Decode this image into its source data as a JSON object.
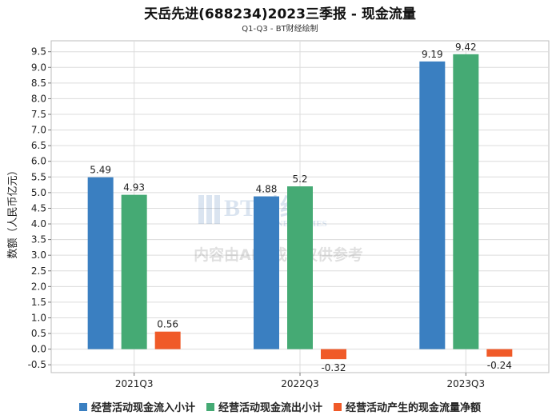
{
  "chart_data": {
    "type": "bar",
    "title": "天岳先进(688234)2023三季报 - 现金流量",
    "subtitle": "Q1-Q3 - BT财经绘制",
    "ylabel": "数额（人民币亿元）",
    "xlabel": "",
    "categories": [
      "2021Q3",
      "2022Q3",
      "2023Q3"
    ],
    "ylim": [
      -0.75,
      9.85
    ],
    "yticks": [
      -0.5,
      0.0,
      0.5,
      1.0,
      1.5,
      2.0,
      2.5,
      3.0,
      3.5,
      4.0,
      4.5,
      5.0,
      5.5,
      6.0,
      6.5,
      7.0,
      7.5,
      8.0,
      8.5,
      9.0,
      9.5
    ],
    "grid": true,
    "legend_position": "bottom",
    "series": [
      {
        "name": "经营活动现金流入小计",
        "color": "#3a7fc1",
        "values": [
          5.49,
          4.88,
          9.19
        ]
      },
      {
        "name": "经营活动现金流出小计",
        "color": "#45aa74",
        "values": [
          4.93,
          5.2,
          9.42
        ]
      },
      {
        "name": "经营活动产生的现金流量净额",
        "color": "#f05a28",
        "values": [
          0.56,
          -0.32,
          -0.24
        ]
      }
    ]
  },
  "watermark": {
    "brand": "BT财经",
    "brand_en": "BUSINESSTIMES",
    "notice": "内容由AI生成，仅供参考"
  }
}
